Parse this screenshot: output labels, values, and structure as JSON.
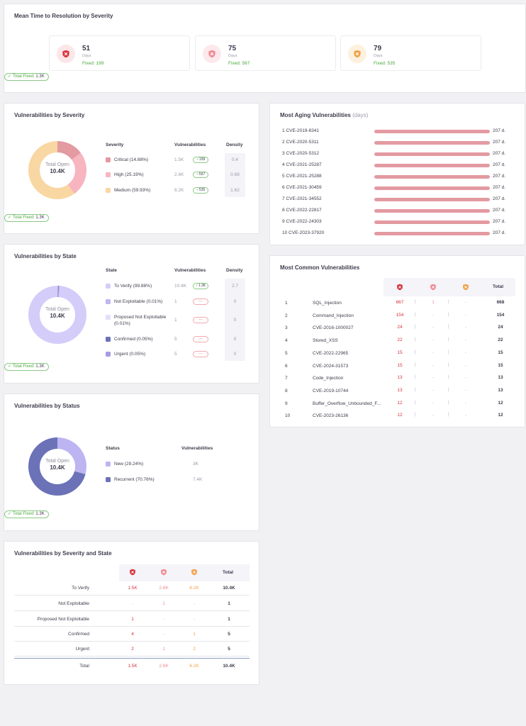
{
  "mttr": {
    "title": "Mean Time to Resolution by Severity",
    "boxes": [
      {
        "value": "51",
        "unit": "Days",
        "fixed": "Fixed: 199",
        "severity": "critical",
        "color": "#d6343a",
        "bg": "#fde6e8",
        "icon": "shield-icon"
      },
      {
        "value": "75",
        "unit": "Days",
        "fixed": "Fixed: 567",
        "severity": "high",
        "color": "#f08a94",
        "bg": "#fde9ec",
        "icon": "shield-icon"
      },
      {
        "value": "79",
        "unit": "Days",
        "fixed": "Fixed: 535",
        "severity": "medium",
        "color": "#f0a048",
        "bg": "#fdf0de",
        "icon": "shield-icon"
      }
    ],
    "total_fixed_label": "Total Fixed:",
    "total_fixed_value": "1.3K"
  },
  "by_severity": {
    "title": "Vulnerabilities by Severity",
    "center_label": "Total Open",
    "center_value": "10.4K",
    "headers": {
      "c1": "Severity",
      "c2": "Vulnerabilities",
      "c3": "Density"
    },
    "rows": [
      {
        "label": "Critical (14.88%)",
        "value": "1.5K",
        "badge": "199",
        "density": "0.4",
        "color": "#e39aa1",
        "share": 14.88
      },
      {
        "label": "High (25.19%)",
        "value": "2.6K",
        "badge": "567",
        "density": "0.68",
        "color": "#f7b5c0",
        "share": 25.19
      },
      {
        "label": "Medium (59.93%)",
        "value": "6.2K",
        "badge": "535",
        "density": "1.62",
        "color": "#f9d7a2",
        "share": 59.93
      }
    ],
    "total_fixed_label": "Total Fixed:",
    "total_fixed_value": "1.3K"
  },
  "by_state": {
    "title": "Vulnerabilities by State",
    "center_label": "Total Open",
    "center_value": "10.4K",
    "headers": {
      "c1": "State",
      "c2": "Vulnerabilities",
      "c3": "Density"
    },
    "rows": [
      {
        "label": "To Verify (99.88%)",
        "value": "10.4K",
        "badge": "1.3K",
        "badge_type": "g",
        "density": "2.7",
        "color": "#d4cdf9",
        "share": 99.88
      },
      {
        "label": "Not Exploitable (0.01%)",
        "value": "1",
        "badge": "---",
        "badge_type": "r",
        "density": "0",
        "color": "#bfb8f0",
        "share": 0.01
      },
      {
        "label": "Proposed Not Exploitable (0.01%)",
        "value": "1",
        "badge": "---",
        "badge_type": "r",
        "density": "0",
        "color": "#e3defb",
        "share": 0.01
      },
      {
        "label": "Confirmed (0.05%)",
        "value": "5",
        "badge": "---",
        "badge_type": "r",
        "density": "0",
        "color": "#6b72b8",
        "share": 0.05
      },
      {
        "label": "Urgent (0.05%)",
        "value": "5",
        "badge": "---",
        "badge_type": "r",
        "density": "0",
        "color": "#a89be0",
        "share": 0.05
      }
    ],
    "total_fixed_label": "Total Fixed:",
    "total_fixed_value": "1.3K"
  },
  "by_status": {
    "title": "Vulnerabilities by Status",
    "center_label": "Total Open",
    "center_value": "10.4K",
    "headers": {
      "c1": "Status",
      "c2": "Vulnerabilities"
    },
    "rows": [
      {
        "label": "New (29.24%)",
        "value": "3K",
        "color": "#bdb5f2",
        "share": 29.24
      },
      {
        "label": "Recurrent (70.76%)",
        "value": "7.4K",
        "color": "#6b72b8",
        "share": 70.76
      }
    ],
    "total_fixed_label": "Total Fixed:",
    "total_fixed_value": "1.3K"
  },
  "sev_state": {
    "title": "Vulnerabilities by Severity and State",
    "total_header": "Total",
    "rows": [
      {
        "label": "To Verify",
        "c": "1.5K",
        "h": "2.6K",
        "m": "6.2K",
        "total": "10.4K"
      },
      {
        "label": "Not Exploitable",
        "c": "-",
        "h": "1",
        "m": "-",
        "total": "1"
      },
      {
        "label": "Proposed Not Exploitable",
        "c": "1",
        "h": "-",
        "m": "-",
        "total": "1"
      },
      {
        "label": "Confirmed",
        "c": "4",
        "h": "-",
        "m": "1",
        "total": "5"
      },
      {
        "label": "Urgent",
        "c": "2",
        "h": "1",
        "m": "2",
        "total": "5"
      }
    ],
    "total_row": {
      "label": "Total",
      "c": "1.5K",
      "h": "2.6K",
      "m": "6.2K",
      "total": "10.4K"
    }
  },
  "aging": {
    "title": "Most Aging Vulnerabilities",
    "title_suffix": "(days)",
    "items": [
      {
        "rank": "1",
        "name": "CVE-2019-8341",
        "value": "207 d.",
        "days": 207
      },
      {
        "rank": "2",
        "name": "CVE-2020-5311",
        "value": "207 d.",
        "days": 207
      },
      {
        "rank": "3",
        "name": "CVE-2020-5312",
        "value": "207 d.",
        "days": 207
      },
      {
        "rank": "4",
        "name": "CVE-2021-25287",
        "value": "207 d.",
        "days": 207
      },
      {
        "rank": "5",
        "name": "CVE-2021-25288",
        "value": "207 d.",
        "days": 207
      },
      {
        "rank": "6",
        "name": "CVE-2021-30459",
        "value": "207 d.",
        "days": 207
      },
      {
        "rank": "7",
        "name": "CVE-2021-34552",
        "value": "207 d.",
        "days": 207
      },
      {
        "rank": "8",
        "name": "CVE-2022-22817",
        "value": "207 d.",
        "days": 207
      },
      {
        "rank": "9",
        "name": "CVE-2022-24303",
        "value": "207 d.",
        "days": 207
      },
      {
        "rank": "10",
        "name": "CVE-2023-37920",
        "value": "207 d.",
        "days": 207
      }
    ]
  },
  "common": {
    "title": "Most Common Vulnerabilities",
    "total_header": "Total",
    "rows": [
      {
        "rank": "1",
        "name": "SQL_Injection",
        "c": "667",
        "h": "1",
        "m": "-",
        "total": "668"
      },
      {
        "rank": "2",
        "name": "Command_Injection",
        "c": "154",
        "h": "-",
        "m": "-",
        "total": "154"
      },
      {
        "rank": "3",
        "name": "CVE-2016-1000027",
        "c": "24",
        "h": "-",
        "m": "-",
        "total": "24"
      },
      {
        "rank": "4",
        "name": "Stored_XSS",
        "c": "22",
        "h": "-",
        "m": "-",
        "total": "22"
      },
      {
        "rank": "5",
        "name": "CVE-2022-22965",
        "c": "15",
        "h": "-",
        "m": "-",
        "total": "15"
      },
      {
        "rank": "6",
        "name": "CVE-2024-31573",
        "c": "15",
        "h": "-",
        "m": "-",
        "total": "15"
      },
      {
        "rank": "7",
        "name": "Code_Injection",
        "c": "13",
        "h": "-",
        "m": "-",
        "total": "13"
      },
      {
        "rank": "8",
        "name": "CVE-2019-10744",
        "c": "13",
        "h": "-",
        "m": "-",
        "total": "13"
      },
      {
        "rank": "9",
        "name": "Buffer_Overflow_Unbounded_F...",
        "c": "12",
        "h": "-",
        "m": "-",
        "total": "12"
      },
      {
        "rank": "10",
        "name": "CVE-2023-26136",
        "c": "12",
        "h": "-",
        "m": "-",
        "total": "12"
      }
    ]
  },
  "colors": {
    "critical": "#d6343a",
    "high": "#f08a94",
    "medium": "#f0a048",
    "fixed_green": "#4aa83a"
  }
}
